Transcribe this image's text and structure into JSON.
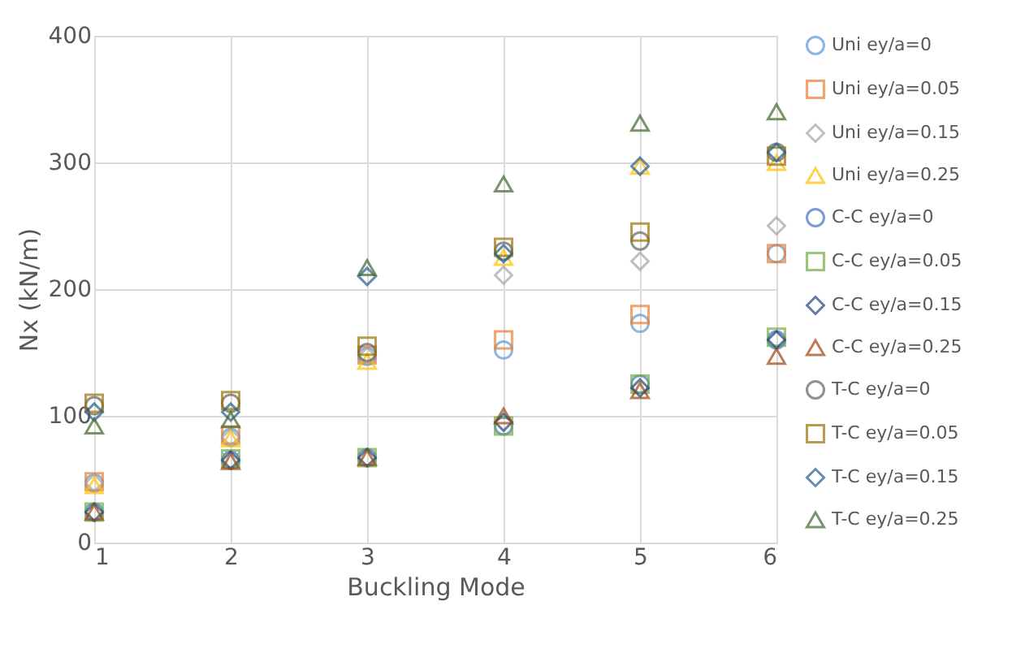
{
  "chart_data": {
    "type": "scatter",
    "xlabel": "Buckling Mode",
    "ylabel": "Nx (kN/m)",
    "xlim": [
      1,
      6
    ],
    "xticks": [
      1,
      2,
      3,
      4,
      5,
      6
    ],
    "ylim": [
      0,
      400
    ],
    "yticks": [
      0,
      100,
      200,
      300,
      400
    ],
    "grid": true,
    "legend": "right",
    "x": [
      1,
      2,
      3,
      4,
      5,
      6
    ],
    "series": [
      {
        "name": "Uni ey/a=0",
        "color": "#5b9bd5",
        "marker": "circle",
        "values": [
          47,
          83,
          147,
          152,
          173,
          228
        ]
      },
      {
        "name": "Uni ey/a=0.05",
        "color": "#ed7d31",
        "marker": "square",
        "values": [
          48,
          85,
          148,
          160,
          180,
          228
        ]
      },
      {
        "name": "Uni ey/a=0.15",
        "color": "#a5a5a5",
        "marker": "diamond",
        "values": [
          47,
          83,
          147,
          211,
          222,
          250
        ]
      },
      {
        "name": "Uni ey/a=0.25",
        "color": "#ffc000",
        "marker": "triangle",
        "values": [
          45,
          82,
          143,
          225,
          297,
          300
        ]
      },
      {
        "name": "C-C ey/a=0",
        "color": "#4472c4",
        "marker": "circle",
        "values": [
          24,
          65,
          67,
          92,
          125,
          160
        ]
      },
      {
        "name": "C-C ey/a=0.05",
        "color": "#70ad47",
        "marker": "square",
        "values": [
          24,
          66,
          67,
          92,
          125,
          162
        ]
      },
      {
        "name": "C-C ey/a=0.15",
        "color": "#264478",
        "marker": "diamond",
        "values": [
          24,
          65,
          67,
          95,
          122,
          160
        ]
      },
      {
        "name": "C-C ey/a=0.25",
        "color": "#9e480e",
        "marker": "triangle",
        "values": [
          24,
          64,
          67,
          100,
          120,
          147
        ]
      },
      {
        "name": "T-C ey/a=0",
        "color": "#636363",
        "marker": "circle",
        "values": [
          108,
          110,
          150,
          230,
          238,
          308
        ]
      },
      {
        "name": "T-C ey/a=0.05",
        "color": "#997300",
        "marker": "square",
        "values": [
          110,
          112,
          155,
          233,
          245,
          305
        ]
      },
      {
        "name": "T-C ey/a=0.15",
        "color": "#255e91",
        "marker": "diamond",
        "values": [
          103,
          103,
          210,
          228,
          297,
          308
        ]
      },
      {
        "name": "T-C ey/a=0.25",
        "color": "#43682b",
        "marker": "triangle",
        "values": [
          92,
          97,
          217,
          283,
          331,
          340
        ]
      }
    ]
  }
}
